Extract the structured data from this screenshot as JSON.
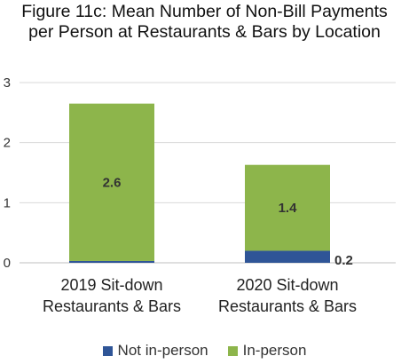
{
  "chart_data": {
    "type": "bar",
    "stacked": true,
    "title_lines": [
      "Figure 11c: Mean Number of Non-Bill Payments",
      "per Person at Restaurants & Bars by Location"
    ],
    "categories": [
      [
        "2019 Sit-down",
        "Restaurants & Bars"
      ],
      [
        "2020 Sit-down",
        "Restaurants & Bars"
      ]
    ],
    "series": [
      {
        "name": "Not in-person",
        "color": "#2f5597",
        "values": [
          0.03,
          0.2
        ],
        "labels": [
          "",
          "0.2"
        ]
      },
      {
        "name": "In-person",
        "color": "#8db54b",
        "values": [
          2.62,
          1.43
        ],
        "labels": [
          "2.6",
          "1.4"
        ]
      }
    ],
    "y_ticks": [
      "0",
      "1",
      "2",
      "3"
    ],
    "ylim": [
      0,
      3
    ],
    "grid": true,
    "legend_position": "bottom"
  }
}
